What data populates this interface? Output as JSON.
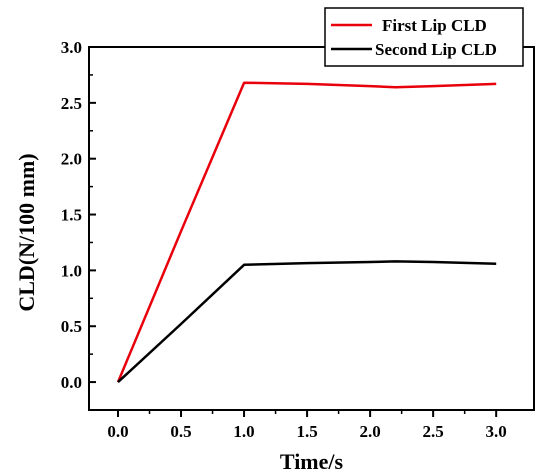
{
  "chart_data": {
    "type": "line",
    "title": "",
    "xlabel": "Time/s",
    "ylabel": "CLD(N/100 mm)",
    "xlim": [
      -0.23,
      3.3
    ],
    "ylim": [
      -0.25,
      3.0
    ],
    "xticks": [
      "0.0",
      "0.5",
      "1.0",
      "1.5",
      "2.0",
      "2.5",
      "3.0"
    ],
    "yticks": [
      "0.0",
      "0.5",
      "1.0",
      "1.5",
      "2.0",
      "2.5",
      "3.0"
    ],
    "grid": false,
    "legend_position": "top-right",
    "series": [
      {
        "name": "First Lip CLD",
        "color": "#e8000b",
        "x": [
          0.0,
          0.5,
          1.0,
          1.5,
          2.0,
          2.2,
          2.5,
          3.0
        ],
        "y": [
          0.0,
          1.35,
          2.68,
          2.67,
          2.65,
          2.64,
          2.65,
          2.67
        ]
      },
      {
        "name": "Second Lip CLD",
        "color": "#000000",
        "x": [
          0.0,
          0.5,
          1.0,
          1.5,
          2.0,
          2.2,
          2.5,
          3.0
        ],
        "y": [
          0.0,
          0.52,
          1.05,
          1.065,
          1.075,
          1.08,
          1.075,
          1.06
        ]
      }
    ]
  }
}
